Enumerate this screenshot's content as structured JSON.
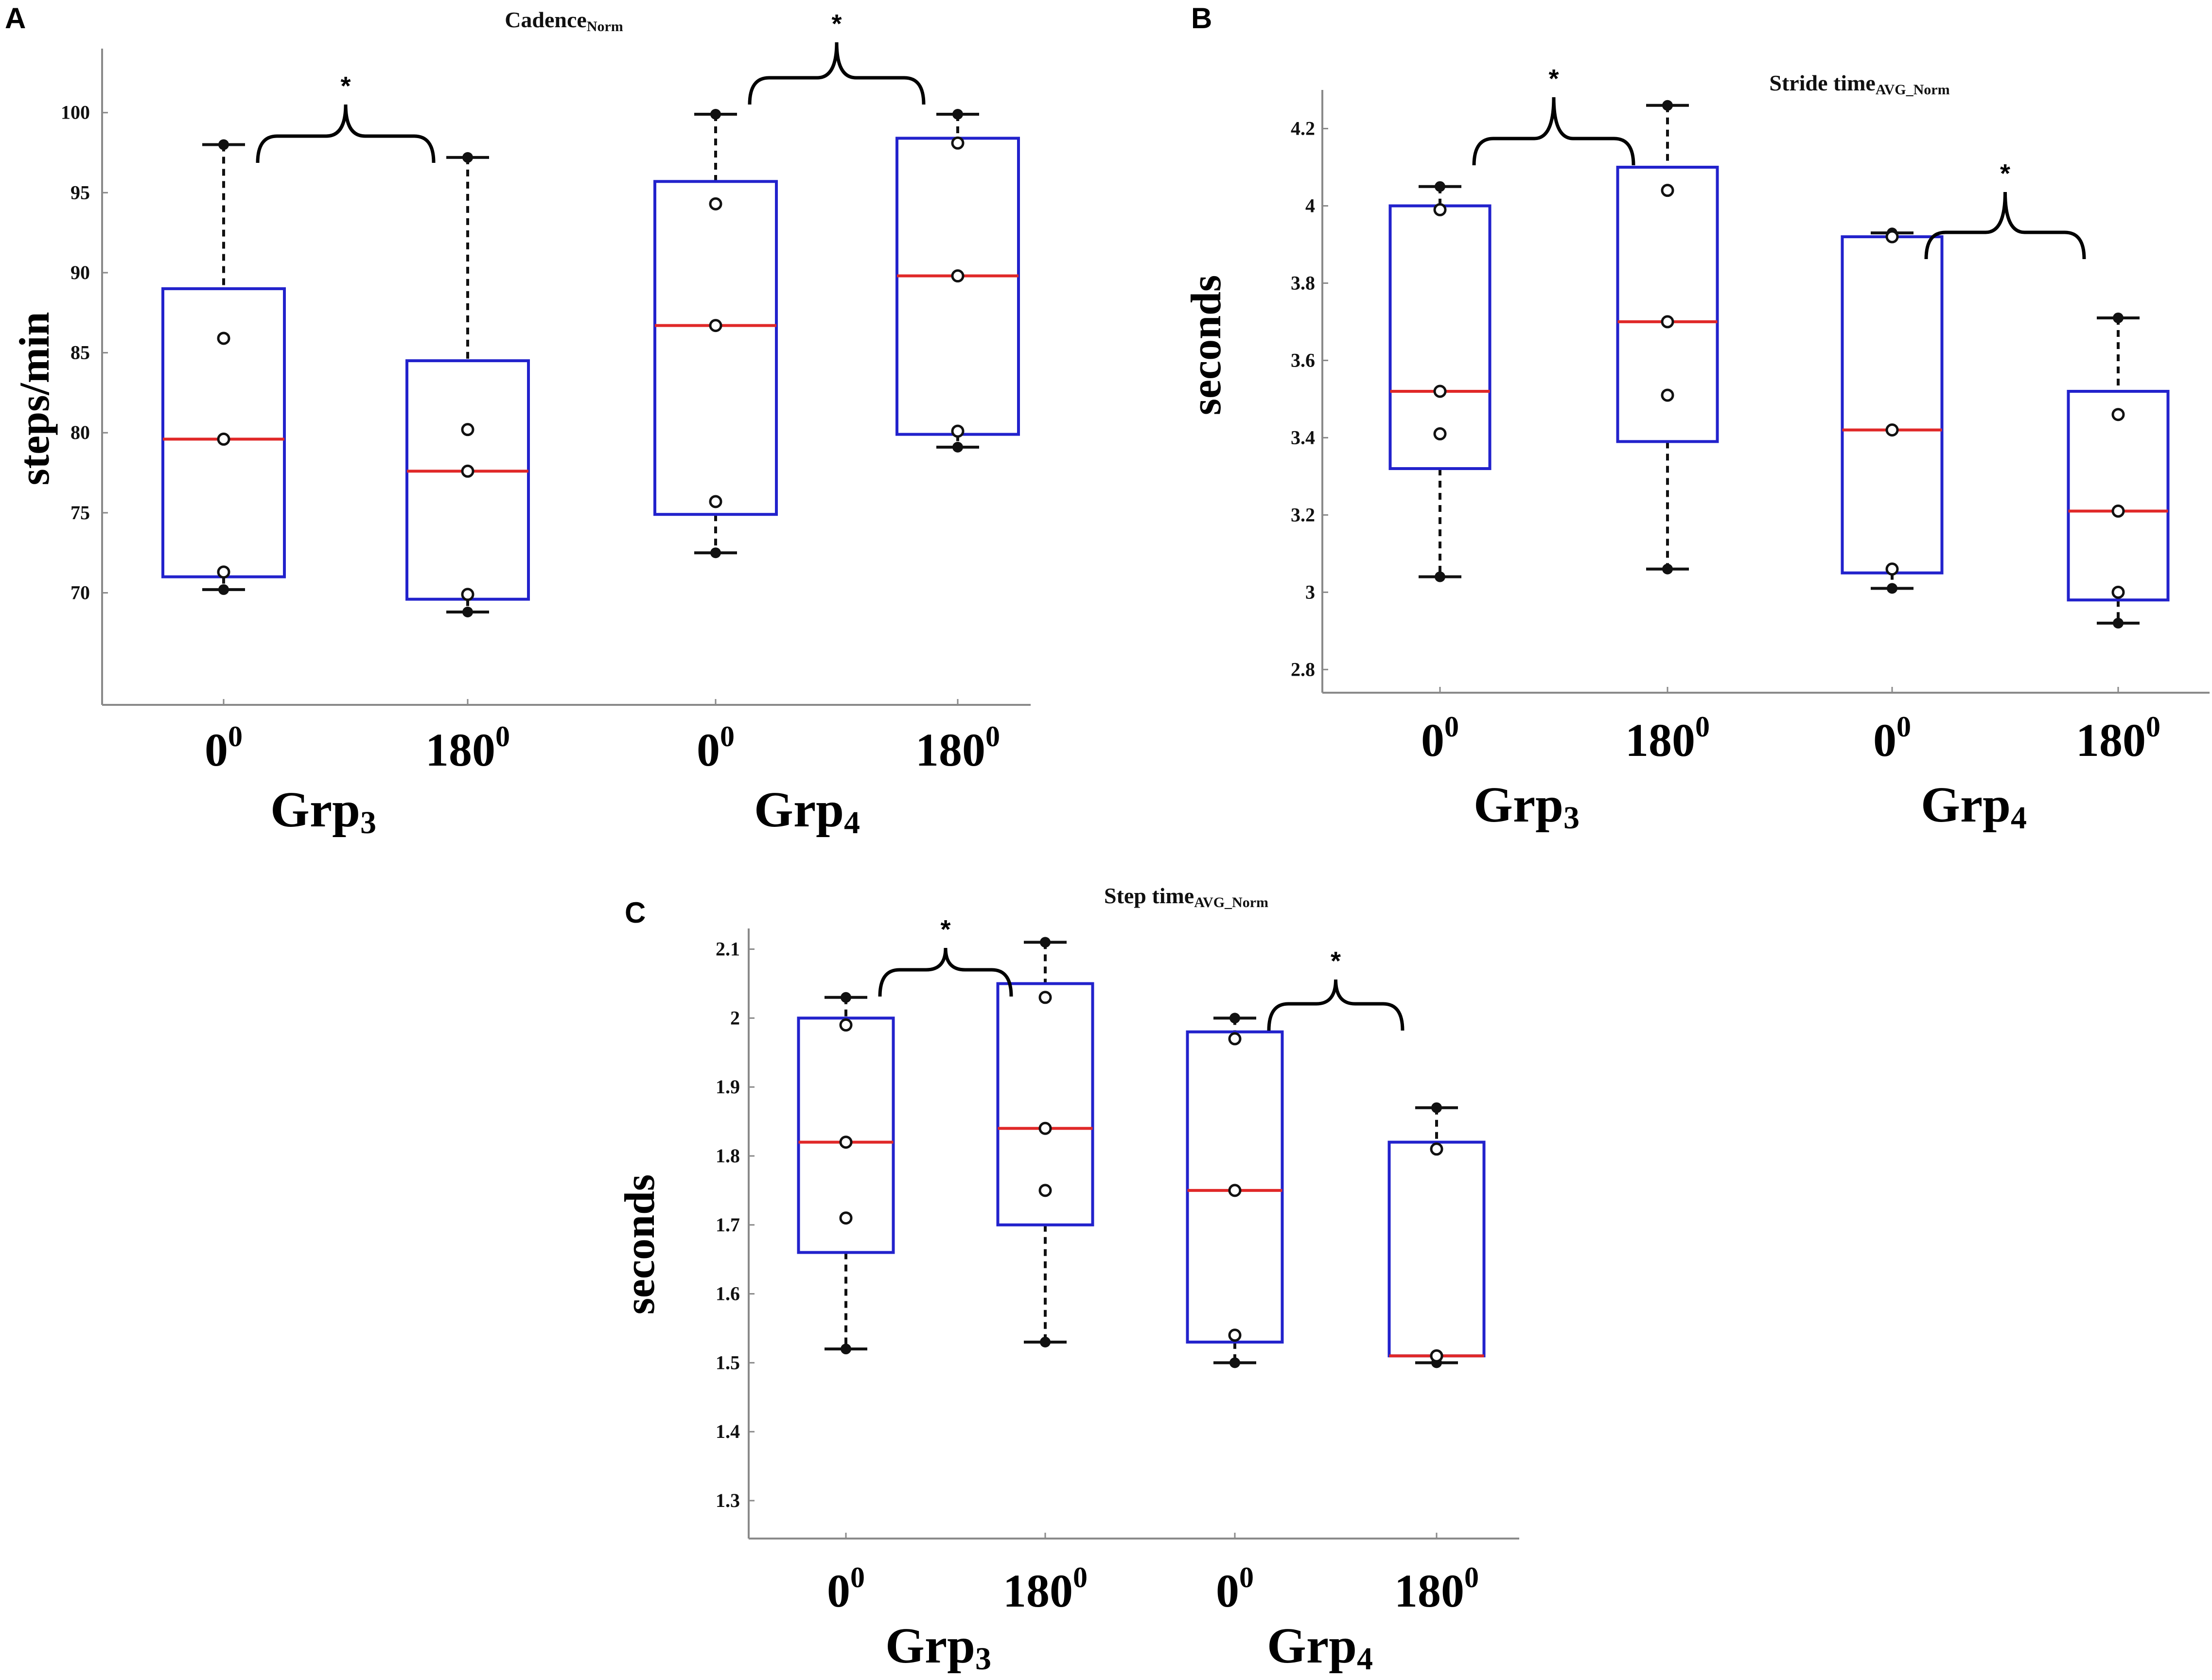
{
  "figure": {
    "panels": [
      "A",
      "B",
      "C"
    ]
  },
  "chart_data": [
    {
      "panel": "A",
      "type": "box",
      "title": "Cadence",
      "title_sub": "Norm",
      "ylabel": "steps/min",
      "ylim": [
        63,
        104
      ],
      "yticks": [
        70,
        75,
        80,
        85,
        90,
        95,
        100
      ],
      "ytick_labels": [
        "70",
        "75",
        "80",
        "85",
        "90",
        "95",
        "100"
      ],
      "categories": [
        "0",
        "180",
        "0",
        "180"
      ],
      "category_superscript": "0",
      "groups": [
        {
          "name": "Grp",
          "sub": "3",
          "members": [
            0,
            1
          ]
        },
        {
          "name": "Grp",
          "sub": "4",
          "members": [
            2,
            3
          ]
        }
      ],
      "boxes": [
        {
          "min": 70.2,
          "q1": 71.0,
          "median": 79.6,
          "q3": 89.0,
          "max": 98.0,
          "points": [
            71.3,
            79.6,
            85.9
          ]
        },
        {
          "min": 68.8,
          "q1": 69.6,
          "median": 77.6,
          "q3": 84.5,
          "max": 97.2,
          "points": [
            69.9,
            77.6,
            80.2
          ]
        },
        {
          "min": 72.5,
          "q1": 74.9,
          "median": 86.7,
          "q3": 95.7,
          "max": 99.9,
          "points": [
            75.7,
            86.7,
            94.3
          ]
        },
        {
          "min": 79.1,
          "q1": 79.9,
          "median": 89.8,
          "q3": 98.4,
          "max": 99.9,
          "points": [
            80.1,
            89.8,
            98.1
          ]
        }
      ],
      "significance": [
        {
          "pair": [
            0,
            1
          ],
          "label": "*"
        },
        {
          "pair": [
            2,
            3
          ],
          "label": "*"
        }
      ]
    },
    {
      "panel": "B",
      "type": "box",
      "title": "Stride time",
      "title_sub": "AVG_Norm",
      "ylabel": "seconds",
      "ylim": [
        2.74,
        4.3
      ],
      "yticks": [
        2.8,
        3.0,
        3.2,
        3.4,
        3.6,
        3.8,
        4.0,
        4.2
      ],
      "ytick_labels": [
        "2.8",
        "3",
        "3.2",
        "3.4",
        "3.6",
        "3.8",
        "4",
        "4.2"
      ],
      "categories": [
        "0",
        "180",
        "0",
        "180"
      ],
      "category_superscript": "0",
      "groups": [
        {
          "name": "Grp",
          "sub": "3",
          "members": [
            0,
            1
          ]
        },
        {
          "name": "Grp",
          "sub": "4",
          "members": [
            2,
            3
          ]
        }
      ],
      "boxes": [
        {
          "min": 3.04,
          "q1": 3.32,
          "median": 3.52,
          "q3": 4.0,
          "max": 4.05,
          "points": [
            3.41,
            3.52,
            3.99
          ]
        },
        {
          "min": 3.06,
          "q1": 3.39,
          "median": 3.7,
          "q3": 4.1,
          "max": 4.26,
          "points": [
            3.51,
            3.7,
            4.04
          ]
        },
        {
          "min": 3.01,
          "q1": 3.05,
          "median": 3.42,
          "q3": 3.92,
          "max": 3.93,
          "points": [
            3.06,
            3.42,
            3.92
          ]
        },
        {
          "min": 2.92,
          "q1": 2.98,
          "median": 3.21,
          "q3": 3.52,
          "max": 3.71,
          "points": [
            3.0,
            3.21,
            3.46
          ]
        }
      ],
      "significance": [
        {
          "pair": [
            0,
            1
          ],
          "label": "*"
        },
        {
          "pair": [
            2,
            3
          ],
          "label": "*"
        }
      ]
    },
    {
      "panel": "C",
      "type": "box",
      "title": "Step time",
      "title_sub": "AVG_Norm",
      "ylabel": "seconds",
      "ylim": [
        1.245,
        2.13
      ],
      "yticks": [
        1.3,
        1.4,
        1.5,
        1.6,
        1.7,
        1.8,
        1.9,
        2.0,
        2.1
      ],
      "ytick_labels": [
        "1.3",
        "1.4",
        "1.5",
        "1.6",
        "1.7",
        "1.8",
        "1.9",
        "2",
        "2.1"
      ],
      "categories": [
        "0",
        "180",
        "0",
        "180"
      ],
      "category_superscript": "0",
      "groups": [
        {
          "name": "Grp",
          "sub": "3",
          "members": [
            0,
            1
          ]
        },
        {
          "name": "Grp",
          "sub": "4",
          "members": [
            2,
            3
          ]
        }
      ],
      "boxes": [
        {
          "min": 1.52,
          "q1": 1.66,
          "median": 1.82,
          "q3": 2.0,
          "max": 2.03,
          "points": [
            1.71,
            1.82,
            1.99
          ]
        },
        {
          "min": 1.53,
          "q1": 1.7,
          "median": 1.84,
          "q3": 2.05,
          "max": 2.11,
          "points": [
            1.75,
            1.84,
            2.03
          ]
        },
        {
          "min": 1.5,
          "q1": 1.53,
          "median": 1.75,
          "q3": 1.98,
          "max": 2.0,
          "points": [
            1.54,
            1.75,
            1.97
          ]
        },
        {
          "min": 1.5,
          "q1": 1.51,
          "median": 1.51,
          "q3": 1.82,
          "max": 1.87,
          "points": [
            1.51,
            1.51,
            1.81
          ]
        }
      ],
      "significance": [
        {
          "pair": [
            0,
            1
          ],
          "label": "*"
        },
        {
          "pair": [
            2,
            3
          ],
          "label": "*"
        }
      ]
    }
  ]
}
